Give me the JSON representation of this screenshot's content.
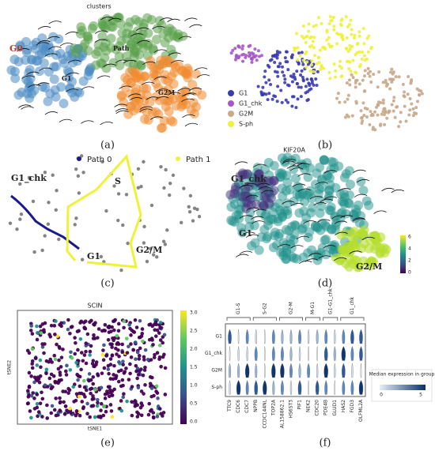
{
  "panels": {
    "a": {
      "title": "clusters",
      "labels": [
        "G0",
        "Path",
        "G1",
        "G2M"
      ],
      "caption": "(a)"
    },
    "b": {
      "legend": [
        "G1",
        "G1_chk",
        "G2M",
        "S-ph"
      ],
      "caption": "(b)"
    },
    "c": {
      "legend": [
        "Path 0",
        "Path 1"
      ],
      "labels": [
        "G1_chk",
        "S",
        "G1",
        "G2/M"
      ],
      "caption": "(c)"
    },
    "d": {
      "title": "KIF20A",
      "labels": [
        "G1_chk",
        "G1",
        "G2/M"
      ],
      "colorbar": [
        "6",
        "4",
        "2",
        "0"
      ],
      "caption": "(d)"
    },
    "e": {
      "title": "SCIN",
      "ylabel": "tSNE2",
      "xlabel": "tSNE1",
      "colorbar": [
        "3.0",
        "2.5",
        "2.0",
        "1.5",
        "1.0",
        "0.5",
        "0.0"
      ],
      "caption": "(e)"
    },
    "f": {
      "groups": [
        "G1-S",
        "S-G2",
        "G2-M",
        "M-G1",
        "G1-G1_chk",
        "G1_chk"
      ],
      "rows": [
        "G1",
        "G1_chk",
        "G2M",
        "S-ph"
      ],
      "genes": [
        "TTC9",
        "CDC6",
        "CDC7",
        "NPPB",
        "CCDC144NL",
        "TOP2A",
        "AL158862.1",
        "HS6ST3",
        "PIF1",
        "NEK2",
        "CDC20",
        "PDE4B",
        "GLUD1",
        "HAS2",
        "FGD3",
        "OLFML2A"
      ],
      "legend_title": "Median expression in group",
      "legend_ticks": [
        "0",
        "5"
      ],
      "caption": "(f)"
    }
  }
}
